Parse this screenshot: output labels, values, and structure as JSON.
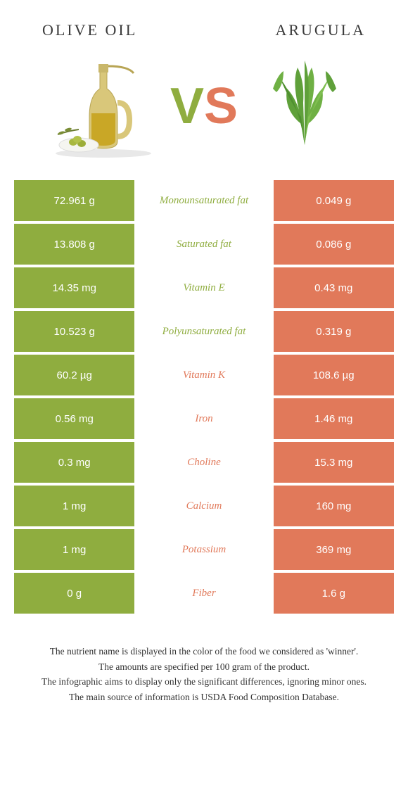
{
  "colors": {
    "left": "#8fad3f",
    "right": "#e1795a",
    "text": "#333333",
    "bg": "#ffffff"
  },
  "header": {
    "left_title": "Olive oil",
    "right_title": "Arugula",
    "vs_v": "V",
    "vs_s": "S"
  },
  "rows": [
    {
      "left": "72.961 g",
      "label": "Monounsaturated fat",
      "right": "0.049 g",
      "winner": "left"
    },
    {
      "left": "13.808 g",
      "label": "Saturated fat",
      "right": "0.086 g",
      "winner": "left"
    },
    {
      "left": "14.35 mg",
      "label": "Vitamin E",
      "right": "0.43 mg",
      "winner": "left"
    },
    {
      "left": "10.523 g",
      "label": "Polyunsaturated fat",
      "right": "0.319 g",
      "winner": "left"
    },
    {
      "left": "60.2 µg",
      "label": "Vitamin K",
      "right": "108.6 µg",
      "winner": "right"
    },
    {
      "left": "0.56 mg",
      "label": "Iron",
      "right": "1.46 mg",
      "winner": "right"
    },
    {
      "left": "0.3 mg",
      "label": "Choline",
      "right": "15.3 mg",
      "winner": "right"
    },
    {
      "left": "1 mg",
      "label": "Calcium",
      "right": "160 mg",
      "winner": "right"
    },
    {
      "left": "1 mg",
      "label": "Potassium",
      "right": "369 mg",
      "winner": "right"
    },
    {
      "left": "0 g",
      "label": "Fiber",
      "right": "1.6 g",
      "winner": "right"
    }
  ],
  "footer": {
    "line1": "The nutrient name is displayed in the color of the food we considered as 'winner'.",
    "line2": "The amounts are specified per 100 gram of the product.",
    "line3": "The infographic aims to display only the significant differences, ignoring minor ones.",
    "line4": "The main source of information is USDA Food Composition Database."
  }
}
